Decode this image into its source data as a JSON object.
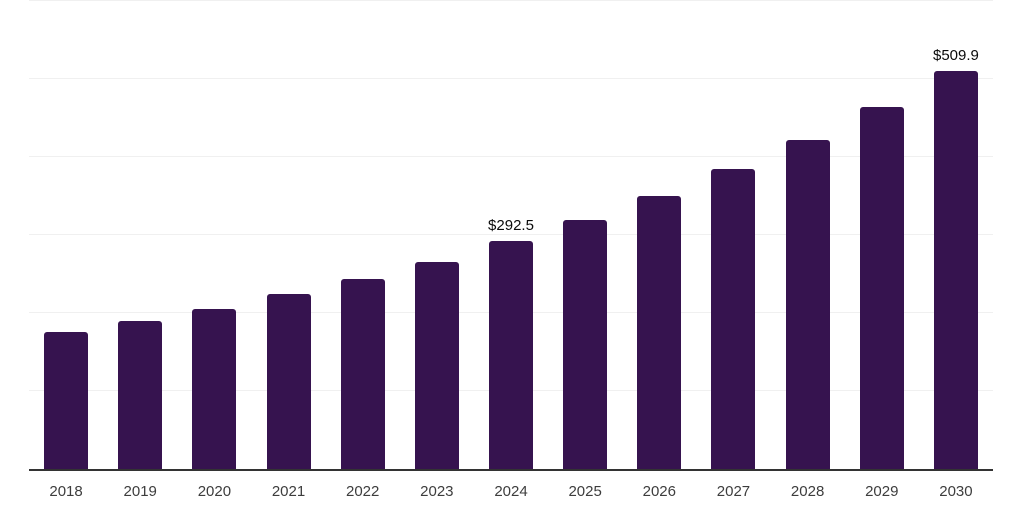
{
  "chart_data": {
    "type": "bar",
    "title": "",
    "xlabel": "",
    "ylabel": "",
    "categories": [
      "2018",
      "2019",
      "2020",
      "2021",
      "2022",
      "2023",
      "2024",
      "2025",
      "2026",
      "2027",
      "2028",
      "2029",
      "2030"
    ],
    "values": [
      175.2,
      189.3,
      204.6,
      223.8,
      243.0,
      266.0,
      292.5,
      319.7,
      350.4,
      384.9,
      422.0,
      464.2,
      509.9
    ],
    "data_labels": [
      "",
      "",
      "",
      "",
      "",
      "",
      "$292.5",
      "",
      "",
      "",
      "",
      "",
      "$509.9"
    ],
    "ylim": [
      0,
      600
    ],
    "gridline_step": 100,
    "grid": "horizontal-only",
    "y_tick_labels_visible": false,
    "legend_position": "none",
    "value_prefix": "$"
  },
  "colors": {
    "bar_fill": "#36134f",
    "axis_line": "#333333",
    "gridline": "#f0f0f0",
    "x_tick_text": "#3d3d3d",
    "data_label_text": "#0a0a0a",
    "background": "#ffffff"
  }
}
